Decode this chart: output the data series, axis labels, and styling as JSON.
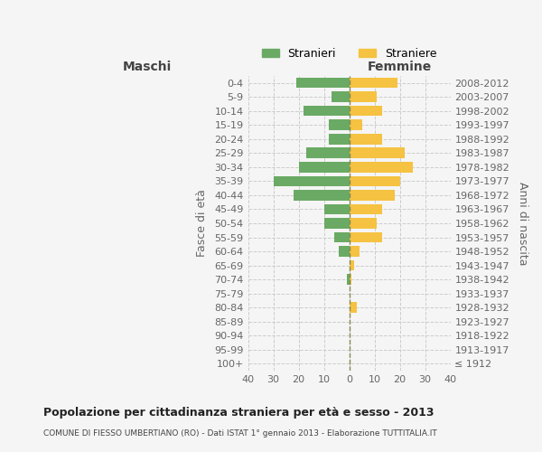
{
  "age_groups": [
    "100+",
    "95-99",
    "90-94",
    "85-89",
    "80-84",
    "75-79",
    "70-74",
    "65-69",
    "60-64",
    "55-59",
    "50-54",
    "45-49",
    "40-44",
    "35-39",
    "30-34",
    "25-29",
    "20-24",
    "15-19",
    "10-14",
    "5-9",
    "0-4"
  ],
  "birth_years": [
    "≤ 1912",
    "1913-1917",
    "1918-1922",
    "1923-1927",
    "1928-1932",
    "1933-1937",
    "1938-1942",
    "1943-1947",
    "1948-1952",
    "1953-1957",
    "1958-1962",
    "1963-1967",
    "1968-1972",
    "1973-1977",
    "1978-1982",
    "1983-1987",
    "1988-1992",
    "1993-1997",
    "1998-2002",
    "2003-2007",
    "2008-2012"
  ],
  "maschi": [
    0,
    0,
    0,
    0,
    0,
    0,
    1,
    0,
    4,
    6,
    10,
    10,
    22,
    30,
    20,
    17,
    8,
    8,
    18,
    7,
    21
  ],
  "femmine": [
    0,
    0,
    0,
    0,
    3,
    0,
    1,
    2,
    4,
    13,
    11,
    13,
    18,
    20,
    25,
    22,
    13,
    5,
    13,
    11,
    19
  ],
  "maschi_color": "#6aaa64",
  "femmine_color": "#f5c242",
  "background_color": "#f5f5f5",
  "grid_color": "#cccccc",
  "title": "Popolazione per cittadinanza straniera per età e sesso - 2013",
  "subtitle": "COMUNE DI FIESSO UMBERTIANO (RO) - Dati ISTAT 1° gennaio 2013 - Elaborazione TUTTITALIA.IT",
  "ylabel_left": "Fasce di età",
  "ylabel_right": "Anni di nascita",
  "xlabel_left": "Maschi",
  "xlabel_right": "Femmine",
  "xlim": 40,
  "legend_stranieri": "Stranieri",
  "legend_straniere": "Straniere"
}
